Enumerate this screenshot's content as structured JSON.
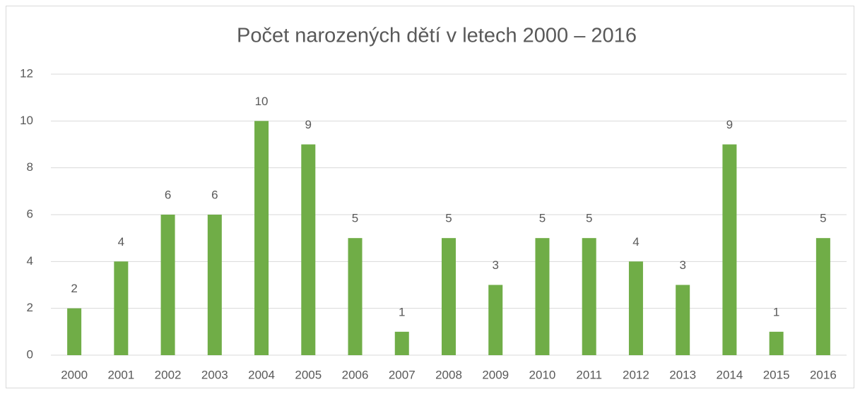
{
  "chart_data": {
    "type": "bar",
    "title": "Počet narozených dětí v letech 2000 – 2016",
    "categories": [
      "2000",
      "2001",
      "2002",
      "2003",
      "2004",
      "2005",
      "2006",
      "2007",
      "2008",
      "2009",
      "2010",
      "2011",
      "2012",
      "2013",
      "2014",
      "2015",
      "2016"
    ],
    "values": [
      2,
      4,
      6,
      6,
      10,
      9,
      5,
      1,
      5,
      3,
      5,
      5,
      4,
      3,
      9,
      1,
      5
    ],
    "color": "#70ad47",
    "ylim": [
      0,
      12
    ],
    "yticks": [
      0,
      2,
      4,
      6,
      8,
      10,
      12
    ],
    "grid": true,
    "data_labels": true
  }
}
